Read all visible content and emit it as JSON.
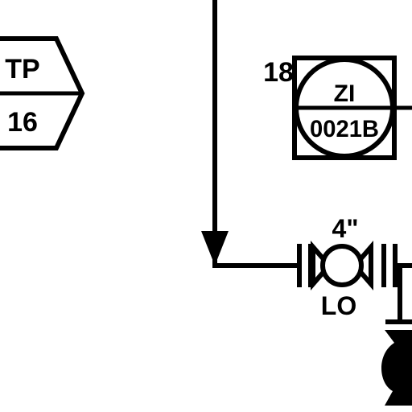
{
  "diagram": {
    "offpage_connector": {
      "top_text": "TP",
      "bottom_text": "16"
    },
    "instrument": {
      "ref_number": "18",
      "function_code": "ZI",
      "tag_number": "0021B"
    },
    "valve": {
      "size_label": "4\"",
      "state_label": "LO"
    },
    "colors": {
      "line": "#000000",
      "background": "#ffffff"
    }
  }
}
